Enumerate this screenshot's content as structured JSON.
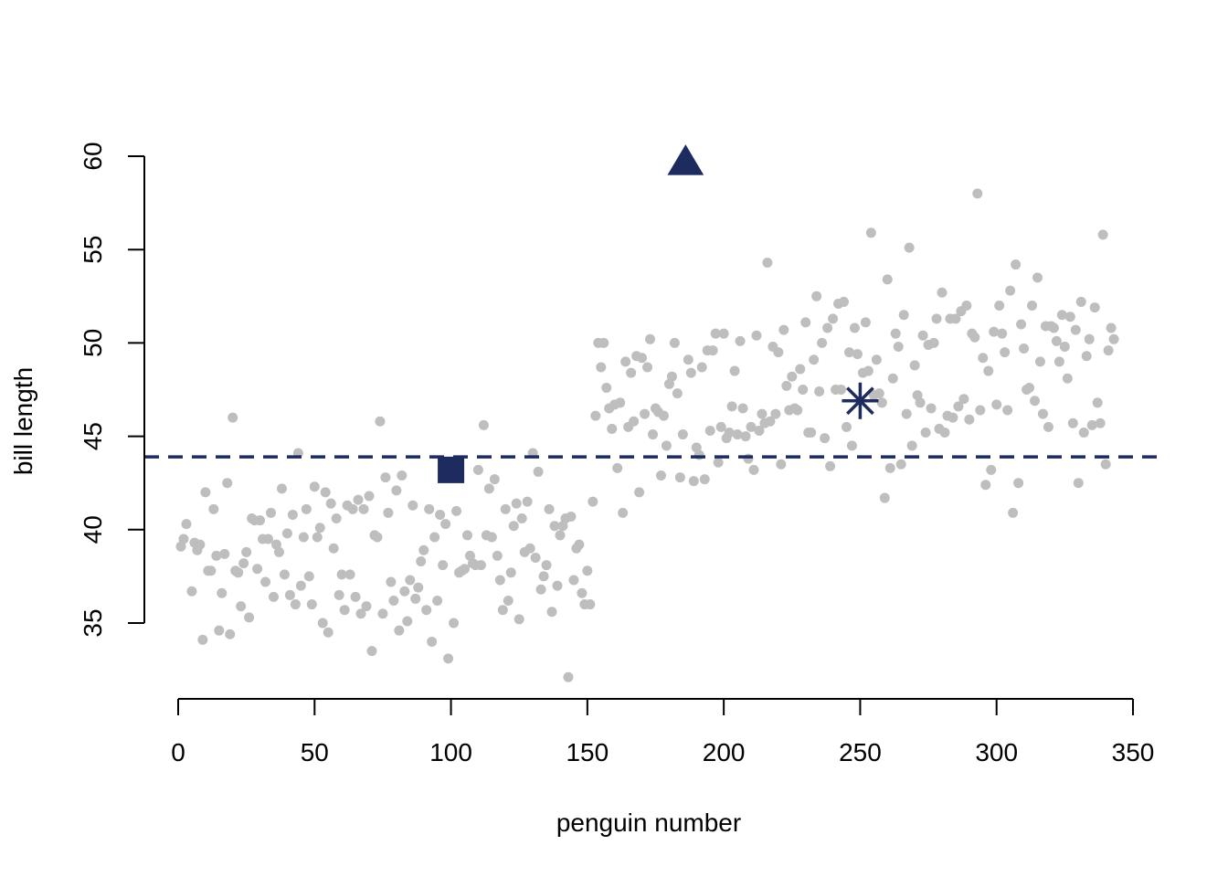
{
  "chart_data": {
    "type": "scatter",
    "title": "",
    "xlabel": "penguin number",
    "ylabel": "bill length",
    "xlim": [
      0,
      350
    ],
    "ylim": [
      32,
      61
    ],
    "x_ticks": [
      "0",
      "50",
      "100",
      "150",
      "200",
      "250",
      "300",
      "350"
    ],
    "y_ticks": [
      "35",
      "40",
      "45",
      "50",
      "55",
      "60"
    ],
    "grid": false,
    "colors": {
      "points": "#bebebe",
      "highlight": "#1d2b5f"
    },
    "reference_line": {
      "y": 43.9,
      "style": "dashed"
    },
    "highlighted_points": [
      {
        "shape": "square",
        "x": 100,
        "y": 43.2
      },
      {
        "shape": "triangle",
        "x": 186,
        "y": 59.7
      },
      {
        "shape": "asterisk",
        "x": 250,
        "y": 46.9
      }
    ],
    "points": [
      [
        1,
        39.1
      ],
      [
        2,
        39.5
      ],
      [
        3,
        40.3
      ],
      [
        5,
        36.7
      ],
      [
        6,
        39.3
      ],
      [
        7,
        38.9
      ],
      [
        8,
        39.2
      ],
      [
        9,
        34.1
      ],
      [
        10,
        42.0
      ],
      [
        11,
        37.8
      ],
      [
        12,
        37.8
      ],
      [
        13,
        41.1
      ],
      [
        14,
        38.6
      ],
      [
        15,
        34.6
      ],
      [
        16,
        36.6
      ],
      [
        17,
        38.7
      ],
      [
        18,
        42.5
      ],
      [
        19,
        34.4
      ],
      [
        20,
        46.0
      ],
      [
        21,
        37.8
      ],
      [
        22,
        37.7
      ],
      [
        23,
        35.9
      ],
      [
        24,
        38.2
      ],
      [
        25,
        38.8
      ],
      [
        26,
        35.3
      ],
      [
        27,
        40.6
      ],
      [
        28,
        40.5
      ],
      [
        29,
        37.9
      ],
      [
        30,
        40.5
      ],
      [
        31,
        39.5
      ],
      [
        32,
        37.2
      ],
      [
        33,
        39.5
      ],
      [
        34,
        40.9
      ],
      [
        35,
        36.4
      ],
      [
        36,
        39.2
      ],
      [
        37,
        38.8
      ],
      [
        38,
        42.2
      ],
      [
        39,
        37.6
      ],
      [
        40,
        39.8
      ],
      [
        41,
        36.5
      ],
      [
        42,
        40.8
      ],
      [
        43,
        36.0
      ],
      [
        44,
        44.1
      ],
      [
        45,
        37.0
      ],
      [
        46,
        39.6
      ],
      [
        47,
        41.1
      ],
      [
        48,
        37.5
      ],
      [
        49,
        36.0
      ],
      [
        50,
        42.3
      ],
      [
        51,
        39.6
      ],
      [
        52,
        40.1
      ],
      [
        53,
        35.0
      ],
      [
        54,
        42.0
      ],
      [
        55,
        34.5
      ],
      [
        56,
        41.4
      ],
      [
        57,
        39.0
      ],
      [
        58,
        40.6
      ],
      [
        59,
        36.5
      ],
      [
        60,
        37.6
      ],
      [
        61,
        35.7
      ],
      [
        62,
        41.3
      ],
      [
        63,
        37.6
      ],
      [
        64,
        41.1
      ],
      [
        65,
        36.4
      ],
      [
        66,
        41.6
      ],
      [
        67,
        35.5
      ],
      [
        68,
        41.1
      ],
      [
        69,
        35.9
      ],
      [
        70,
        41.8
      ],
      [
        71,
        33.5
      ],
      [
        72,
        39.7
      ],
      [
        73,
        39.6
      ],
      [
        74,
        45.8
      ],
      [
        75,
        35.5
      ],
      [
        76,
        42.8
      ],
      [
        77,
        40.9
      ],
      [
        78,
        37.2
      ],
      [
        79,
        36.2
      ],
      [
        80,
        42.1
      ],
      [
        81,
        34.6
      ],
      [
        82,
        42.9
      ],
      [
        83,
        36.7
      ],
      [
        84,
        35.1
      ],
      [
        85,
        37.3
      ],
      [
        86,
        41.3
      ],
      [
        87,
        36.3
      ],
      [
        88,
        36.9
      ],
      [
        89,
        38.3
      ],
      [
        90,
        38.9
      ],
      [
        91,
        35.7
      ],
      [
        92,
        41.1
      ],
      [
        93,
        34.0
      ],
      [
        94,
        39.6
      ],
      [
        95,
        36.2
      ],
      [
        96,
        40.8
      ],
      [
        97,
        38.1
      ],
      [
        98,
        40.3
      ],
      [
        99,
        33.1
      ],
      [
        101,
        35.0
      ],
      [
        102,
        41.0
      ],
      [
        103,
        37.7
      ],
      [
        104,
        37.8
      ],
      [
        105,
        37.9
      ],
      [
        106,
        39.7
      ],
      [
        107,
        38.6
      ],
      [
        108,
        38.2
      ],
      [
        109,
        38.1
      ],
      [
        110,
        43.2
      ],
      [
        111,
        38.1
      ],
      [
        112,
        45.6
      ],
      [
        113,
        39.7
      ],
      [
        114,
        42.2
      ],
      [
        115,
        39.6
      ],
      [
        116,
        42.7
      ],
      [
        117,
        38.6
      ],
      [
        118,
        37.3
      ],
      [
        119,
        35.7
      ],
      [
        120,
        41.1
      ],
      [
        121,
        36.2
      ],
      [
        122,
        37.7
      ],
      [
        123,
        40.2
      ],
      [
        124,
        41.4
      ],
      [
        125,
        35.2
      ],
      [
        126,
        40.6
      ],
      [
        127,
        38.8
      ],
      [
        128,
        41.5
      ],
      [
        129,
        39.0
      ],
      [
        130,
        44.1
      ],
      [
        131,
        38.5
      ],
      [
        132,
        43.1
      ],
      [
        133,
        36.8
      ],
      [
        134,
        37.5
      ],
      [
        135,
        38.1
      ],
      [
        136,
        41.1
      ],
      [
        137,
        35.6
      ],
      [
        138,
        40.2
      ],
      [
        139,
        37.0
      ],
      [
        140,
        39.7
      ],
      [
        141,
        40.2
      ],
      [
        142,
        40.6
      ],
      [
        143,
        32.1
      ],
      [
        144,
        40.7
      ],
      [
        145,
        37.3
      ],
      [
        146,
        39.0
      ],
      [
        147,
        39.2
      ],
      [
        148,
        36.6
      ],
      [
        149,
        36.0
      ],
      [
        150,
        37.8
      ],
      [
        151,
        36.0
      ],
      [
        152,
        41.5
      ],
      [
        153,
        46.1
      ],
      [
        154,
        50.0
      ],
      [
        155,
        48.7
      ],
      [
        156,
        50.0
      ],
      [
        157,
        47.6
      ],
      [
        158,
        46.5
      ],
      [
        159,
        45.4
      ],
      [
        160,
        46.7
      ],
      [
        161,
        43.3
      ],
      [
        162,
        46.8
      ],
      [
        163,
        40.9
      ],
      [
        164,
        49.0
      ],
      [
        165,
        45.5
      ],
      [
        166,
        48.4
      ],
      [
        167,
        45.8
      ],
      [
        168,
        49.3
      ],
      [
        169,
        42.0
      ],
      [
        170,
        49.2
      ],
      [
        171,
        46.2
      ],
      [
        172,
        48.7
      ],
      [
        173,
        50.2
      ],
      [
        174,
        45.1
      ],
      [
        175,
        46.5
      ],
      [
        176,
        46.3
      ],
      [
        177,
        42.9
      ],
      [
        178,
        46.1
      ],
      [
        179,
        44.5
      ],
      [
        180,
        47.8
      ],
      [
        181,
        48.2
      ],
      [
        182,
        50.0
      ],
      [
        183,
        47.3
      ],
      [
        184,
        42.8
      ],
      [
        185,
        45.1
      ],
      [
        187,
        49.1
      ],
      [
        188,
        48.4
      ],
      [
        189,
        42.6
      ],
      [
        190,
        44.4
      ],
      [
        191,
        44.0
      ],
      [
        192,
        48.7
      ],
      [
        193,
        42.7
      ],
      [
        194,
        49.6
      ],
      [
        195,
        45.3
      ],
      [
        196,
        49.6
      ],
      [
        197,
        50.5
      ],
      [
        198,
        43.6
      ],
      [
        199,
        45.5
      ],
      [
        200,
        50.5
      ],
      [
        201,
        44.9
      ],
      [
        202,
        45.2
      ],
      [
        203,
        46.6
      ],
      [
        204,
        48.5
      ],
      [
        205,
        45.1
      ],
      [
        206,
        50.1
      ],
      [
        207,
        46.5
      ],
      [
        208,
        45.0
      ],
      [
        209,
        43.8
      ],
      [
        210,
        45.5
      ],
      [
        211,
        43.2
      ],
      [
        212,
        50.4
      ],
      [
        213,
        45.3
      ],
      [
        214,
        46.2
      ],
      [
        215,
        45.7
      ],
      [
        216,
        54.3
      ],
      [
        217,
        45.8
      ],
      [
        218,
        49.8
      ],
      [
        219,
        46.2
      ],
      [
        220,
        49.5
      ],
      [
        221,
        43.5
      ],
      [
        222,
        50.7
      ],
      [
        223,
        47.7
      ],
      [
        224,
        46.4
      ],
      [
        225,
        48.2
      ],
      [
        226,
        46.5
      ],
      [
        227,
        46.4
      ],
      [
        228,
        48.6
      ],
      [
        229,
        47.5
      ],
      [
        230,
        51.1
      ],
      [
        231,
        45.2
      ],
      [
        232,
        45.2
      ],
      [
        233,
        49.1
      ],
      [
        234,
        52.5
      ],
      [
        235,
        47.4
      ],
      [
        236,
        50.0
      ],
      [
        237,
        44.9
      ],
      [
        238,
        50.8
      ],
      [
        239,
        43.4
      ],
      [
        240,
        51.3
      ],
      [
        241,
        47.5
      ],
      [
        242,
        52.1
      ],
      [
        243,
        47.5
      ],
      [
        244,
        52.2
      ],
      [
        245,
        45.5
      ],
      [
        246,
        49.5
      ],
      [
        247,
        44.5
      ],
      [
        248,
        50.8
      ],
      [
        249,
        49.4
      ],
      [
        251,
        48.4
      ],
      [
        252,
        51.1
      ],
      [
        253,
        48.5
      ],
      [
        254,
        55.9
      ],
      [
        255,
        47.2
      ],
      [
        256,
        49.1
      ],
      [
        257,
        47.3
      ],
      [
        258,
        46.8
      ],
      [
        259,
        41.7
      ],
      [
        260,
        53.4
      ],
      [
        261,
        43.3
      ],
      [
        262,
        48.1
      ],
      [
        263,
        50.5
      ],
      [
        264,
        49.8
      ],
      [
        265,
        43.5
      ],
      [
        266,
        51.5
      ],
      [
        267,
        46.2
      ],
      [
        268,
        55.1
      ],
      [
        269,
        44.5
      ],
      [
        270,
        48.8
      ],
      [
        271,
        47.2
      ],
      [
        272,
        46.8
      ],
      [
        273,
        50.4
      ],
      [
        274,
        45.2
      ],
      [
        275,
        49.9
      ],
      [
        276,
        46.5
      ],
      [
        277,
        50.0
      ],
      [
        278,
        51.3
      ],
      [
        279,
        45.4
      ],
      [
        280,
        52.7
      ],
      [
        281,
        45.2
      ],
      [
        282,
        46.1
      ],
      [
        283,
        51.3
      ],
      [
        284,
        46.0
      ],
      [
        285,
        51.3
      ],
      [
        286,
        46.6
      ],
      [
        287,
        51.7
      ],
      [
        288,
        47.0
      ],
      [
        289,
        52.0
      ],
      [
        290,
        45.9
      ],
      [
        291,
        50.5
      ],
      [
        292,
        50.3
      ],
      [
        293,
        58.0
      ],
      [
        294,
        46.4
      ],
      [
        295,
        49.2
      ],
      [
        296,
        42.4
      ],
      [
        297,
        48.5
      ],
      [
        298,
        43.2
      ],
      [
        299,
        50.6
      ],
      [
        300,
        46.7
      ],
      [
        301,
        52.0
      ],
      [
        302,
        50.5
      ],
      [
        303,
        49.5
      ],
      [
        304,
        46.4
      ],
      [
        305,
        52.8
      ],
      [
        306,
        40.9
      ],
      [
        307,
        54.2
      ],
      [
        308,
        42.5
      ],
      [
        309,
        51.0
      ],
      [
        310,
        49.7
      ],
      [
        311,
        47.5
      ],
      [
        312,
        47.6
      ],
      [
        313,
        52.0
      ],
      [
        314,
        46.9
      ],
      [
        315,
        53.5
      ],
      [
        316,
        49.0
      ],
      [
        317,
        46.2
      ],
      [
        318,
        50.9
      ],
      [
        319,
        45.5
      ],
      [
        320,
        50.9
      ],
      [
        321,
        50.8
      ],
      [
        322,
        50.1
      ],
      [
        323,
        49.0
      ],
      [
        324,
        51.5
      ],
      [
        325,
        49.8
      ],
      [
        326,
        48.1
      ],
      [
        327,
        51.4
      ],
      [
        328,
        45.7
      ],
      [
        329,
        50.7
      ],
      [
        330,
        42.5
      ],
      [
        331,
        52.2
      ],
      [
        332,
        45.2
      ],
      [
        333,
        49.3
      ],
      [
        334,
        50.2
      ],
      [
        335,
        45.6
      ],
      [
        336,
        51.9
      ],
      [
        337,
        46.8
      ],
      [
        338,
        45.7
      ],
      [
        339,
        55.8
      ],
      [
        340,
        43.5
      ],
      [
        341,
        49.6
      ],
      [
        342,
        50.8
      ],
      [
        343,
        50.2
      ]
    ]
  }
}
